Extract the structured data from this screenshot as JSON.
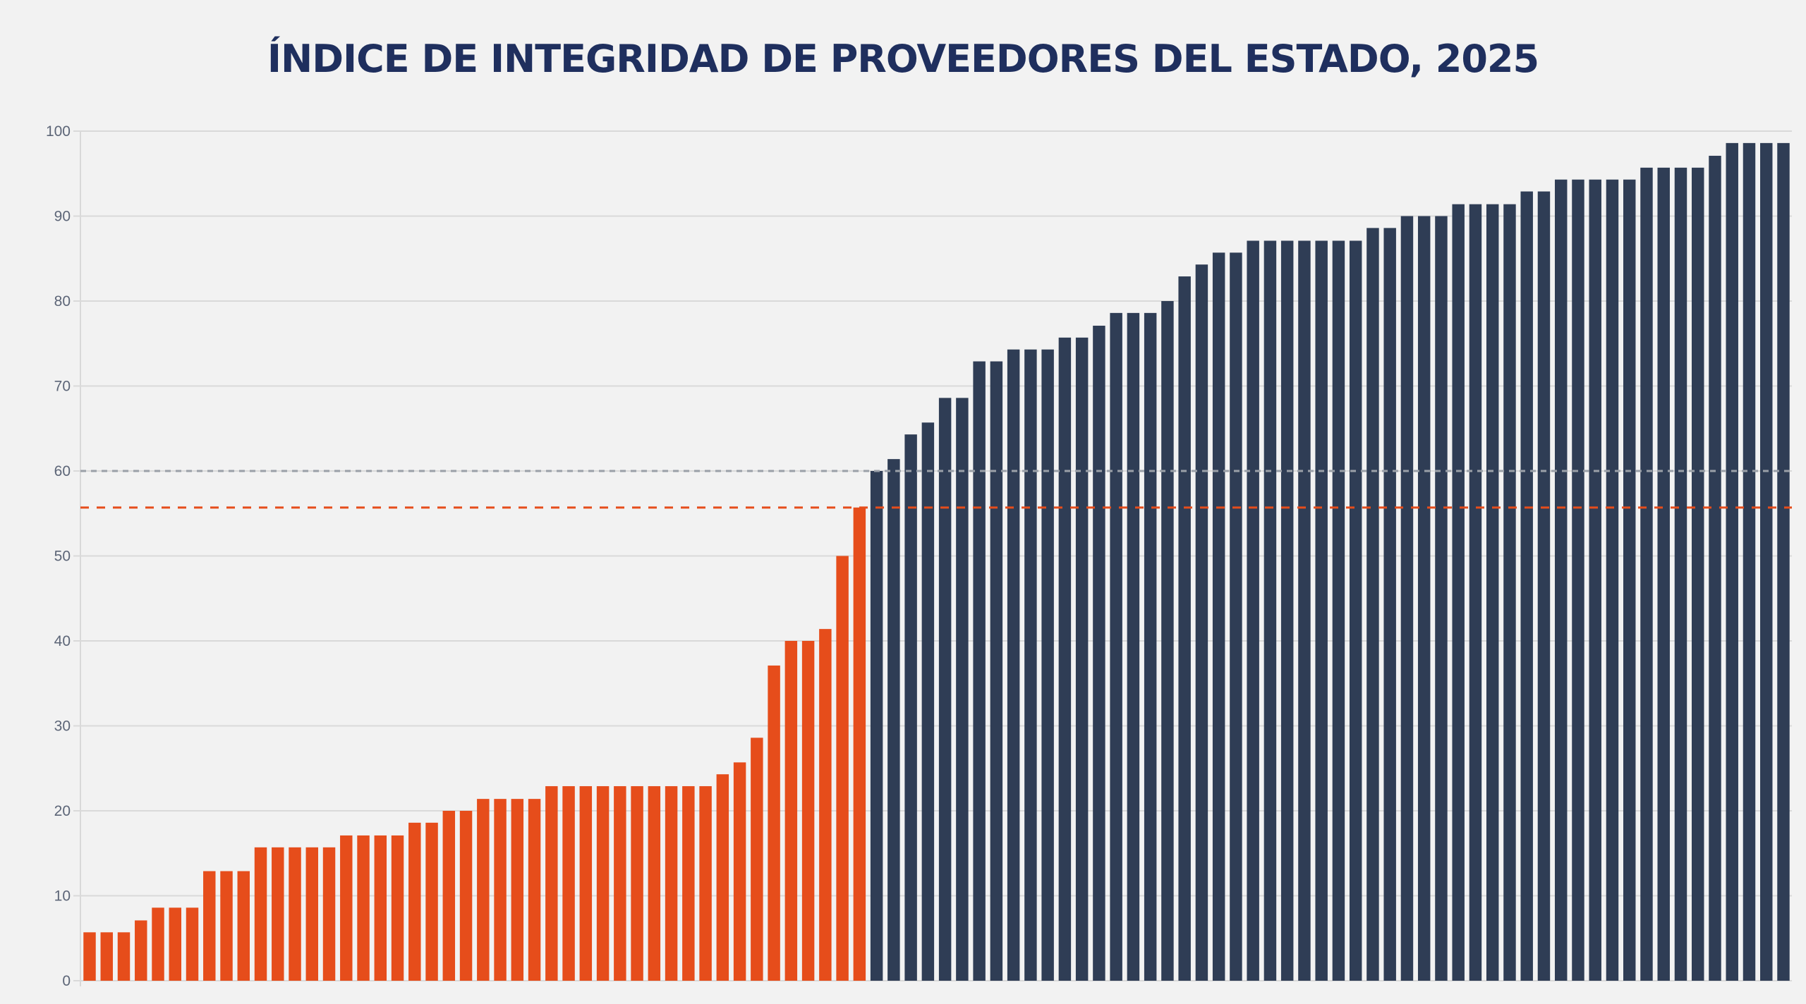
{
  "chart_data": {
    "type": "bar",
    "title": "ÍNDICE DE INTEGRIDAD DE PROVEEDORES DEL ESTADO, 2025",
    "xlabel": "",
    "ylabel": "",
    "ylim": [
      0,
      100
    ],
    "yticks": [
      "0",
      "10",
      "20",
      "30",
      "40",
      "50",
      "60",
      "70",
      "80",
      "90",
      "100"
    ],
    "grid": true,
    "colors": {
      "below": "#e64d1b",
      "above": "#2f3d55",
      "grid": "#d9d9d9",
      "threshold_line": "#9aa0a8",
      "mean_line": "#e64d1b"
    },
    "reference_lines": [
      {
        "name": "threshold",
        "value": 60
      },
      {
        "name": "mean",
        "value": 55.7
      }
    ],
    "series": [
      {
        "name": "below-threshold",
        "values": [
          5.7,
          5.7,
          5.7,
          7.1,
          8.6,
          8.6,
          8.6,
          12.9,
          12.9,
          12.9,
          15.7,
          15.7,
          15.7,
          15.7,
          15.7,
          17.1,
          17.1,
          17.1,
          17.1,
          18.6,
          18.6,
          20,
          20,
          21.4,
          21.4,
          21.4,
          21.4,
          22.9,
          22.9,
          22.9,
          22.9,
          22.9,
          22.9,
          22.9,
          22.9,
          22.9,
          22.9,
          24.3,
          25.7,
          28.6,
          37.1,
          40,
          40,
          41.4,
          50,
          55.7
        ]
      },
      {
        "name": "above-threshold",
        "values": [
          60,
          61.4,
          64.3,
          65.7,
          68.6,
          68.6,
          72.9,
          72.9,
          74.3,
          74.3,
          74.3,
          75.7,
          75.7,
          77.1,
          78.6,
          78.6,
          78.6,
          80,
          82.9,
          84.3,
          85.7,
          85.7,
          87.1,
          87.1,
          87.1,
          87.1,
          87.1,
          87.1,
          87.1,
          88.6,
          88.6,
          90,
          90,
          90,
          91.4,
          91.4,
          91.4,
          91.4,
          92.9,
          92.9,
          94.3,
          94.3,
          94.3,
          94.3,
          94.3,
          95.7,
          95.7,
          95.7,
          95.7,
          97.1,
          98.6,
          98.6,
          98.6,
          98.6
        ]
      }
    ]
  }
}
